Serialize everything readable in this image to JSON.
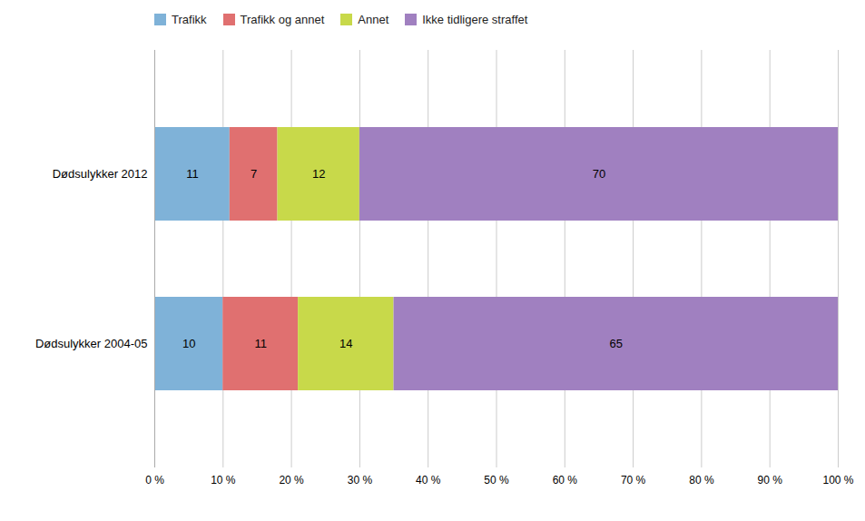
{
  "chart_data": {
    "type": "bar",
    "orientation": "horizontal",
    "stacked": true,
    "categories": [
      "Dødsulykker 2012",
      "Dødsulykker 2004-05"
    ],
    "series": [
      {
        "name": "Trafikk",
        "color": "#7FB2D8",
        "values": [
          11,
          10
        ]
      },
      {
        "name": "Trafikk og annet",
        "color": "#E07070",
        "values": [
          7,
          11
        ]
      },
      {
        "name": "Annet",
        "color": "#C8D94A",
        "values": [
          12,
          14
        ]
      },
      {
        "name": "Ikke tidligere straffet",
        "color": "#A080C0",
        "values": [
          70,
          65
        ]
      }
    ],
    "xlim": [
      0,
      100
    ],
    "xticks": [
      {
        "value": 0,
        "label": "0 %"
      },
      {
        "value": 10,
        "label": "10 %"
      },
      {
        "value": 20,
        "label": "20 %"
      },
      {
        "value": 30,
        "label": "30 %"
      },
      {
        "value": 40,
        "label": "40 %"
      },
      {
        "value": 50,
        "label": "50 %"
      },
      {
        "value": 60,
        "label": "60 %"
      },
      {
        "value": 70,
        "label": "70 %"
      },
      {
        "value": 80,
        "label": "80 %"
      },
      {
        "value": 90,
        "label": "90 %"
      },
      {
        "value": 100,
        "label": "100 %"
      }
    ],
    "grid": true,
    "data_labels": true,
    "legend": "top-left"
  }
}
